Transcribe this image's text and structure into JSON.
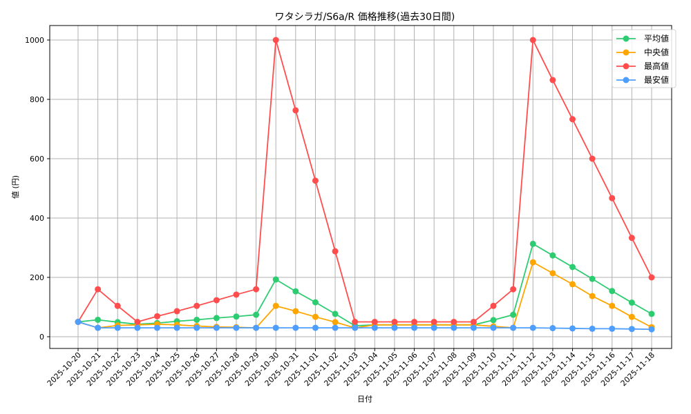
{
  "chart_data": {
    "type": "line",
    "title": "ワタシラガ/S6a/R 価格推移(過去30日間)",
    "xlabel": "日付",
    "ylabel": "値 (円)",
    "ylim": [
      -40,
      1050
    ],
    "yticks": [
      0,
      200,
      400,
      600,
      800,
      1000
    ],
    "grid": true,
    "legend_position": "upper right",
    "categories": [
      "2025-10-20",
      "2025-10-21",
      "2025-10-22",
      "2025-10-23",
      "2025-10-24",
      "2025-10-25",
      "2025-10-26",
      "2025-10-27",
      "2025-10-28",
      "2025-10-29",
      "2025-10-30",
      "2025-10-31",
      "2025-11-01",
      "2025-11-02",
      "2025-11-03",
      "2025-11-04",
      "2025-11-05",
      "2025-11-06",
      "2025-11-07",
      "2025-11-08",
      "2025-11-09",
      "2025-11-10",
      "2025-11-11",
      "2025-11-12",
      "2025-11-13",
      "2025-11-14",
      "2025-11-15",
      "2025-11-16",
      "2025-11-17",
      "2025-11-18"
    ],
    "series": [
      {
        "name": "平均値",
        "color": "#2ecc71",
        "values": [
          50,
          57,
          49,
          42,
          46,
          52,
          57,
          63,
          68,
          74,
          193,
          153,
          116,
          77,
          37,
          40,
          40,
          40,
          40,
          40,
          40,
          56,
          74,
          313,
          274,
          235,
          195,
          154,
          115,
          77
        ]
      },
      {
        "name": "中央値",
        "color": "#ffa500",
        "values": [
          50,
          30,
          38,
          40,
          42,
          40,
          36,
          33,
          32,
          30,
          104,
          86,
          67,
          49,
          30,
          40,
          40,
          40,
          40,
          40,
          40,
          35,
          30,
          251,
          214,
          177,
          137,
          104,
          67,
          32
        ]
      },
      {
        "name": "最高値",
        "color": "#ff4d4d",
        "values": [
          50,
          160,
          104,
          50,
          69,
          86,
          104,
          123,
          142,
          160,
          1000,
          763,
          526,
          288,
          50,
          50,
          50,
          50,
          50,
          50,
          50,
          104,
          160,
          1000,
          865,
          733,
          600,
          467,
          333,
          200
        ]
      },
      {
        "name": "最安値",
        "color": "#4d9eff",
        "values": [
          50,
          30,
          30,
          30,
          30,
          30,
          30,
          30,
          30,
          30,
          30,
          30,
          30,
          30,
          30,
          30,
          30,
          30,
          30,
          30,
          30,
          30,
          30,
          30,
          29,
          28,
          27,
          27,
          26,
          25
        ]
      }
    ]
  }
}
